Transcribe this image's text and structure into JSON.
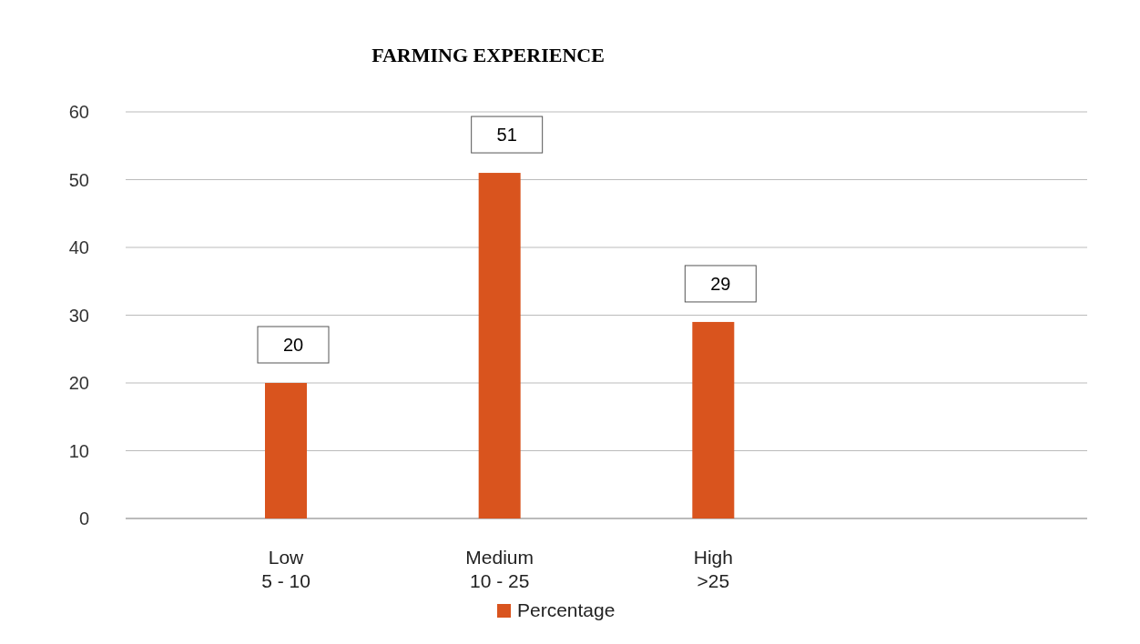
{
  "chart_data": {
    "type": "bar",
    "title": "FARMING EXPERIENCE",
    "categories": [
      "Low\n5 - 10",
      "Medium\n10 - 25",
      "High\n>25"
    ],
    "series": [
      {
        "name": "Percentage",
        "color": "#d9541e",
        "values": [
          20,
          51,
          29
        ]
      }
    ],
    "ylim": [
      0,
      60
    ],
    "yticks": [
      0,
      10,
      20,
      30,
      40,
      50,
      60
    ],
    "grid": "y",
    "legend": "bottom",
    "data_labels": true
  }
}
